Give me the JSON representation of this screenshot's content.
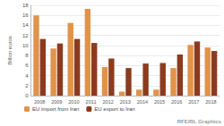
{
  "chart_data": {
    "type": "bar",
    "y_label": "Billion euros",
    "categories": [
      "2008",
      "2009",
      "2010",
      "2011",
      "2012",
      "2013",
      "2014",
      "2015",
      "2016",
      "2017",
      "2018"
    ],
    "series": [
      {
        "name": "EU import from Iran",
        "color": "#e0934a",
        "values": [
          16,
          9.4,
          14.5,
          17.3,
          5.7,
          0.8,
          1.2,
          1.2,
          5.5,
          10.1,
          9.6
        ]
      },
      {
        "name": "EU export to Iran",
        "color": "#8c3b1e",
        "values": [
          11.3,
          10.4,
          11.3,
          10.5,
          7.4,
          5.5,
          6.4,
          6.5,
          8.2,
          10.8,
          8.9
        ]
      }
    ],
    "ylim": [
      0,
      18
    ],
    "yticks": [
      0,
      2,
      4,
      6,
      8,
      10,
      12,
      14,
      16,
      18
    ],
    "grid": true,
    "legend": "bottom",
    "annotations": [
      "RFE/RL Graphics"
    ]
  }
}
